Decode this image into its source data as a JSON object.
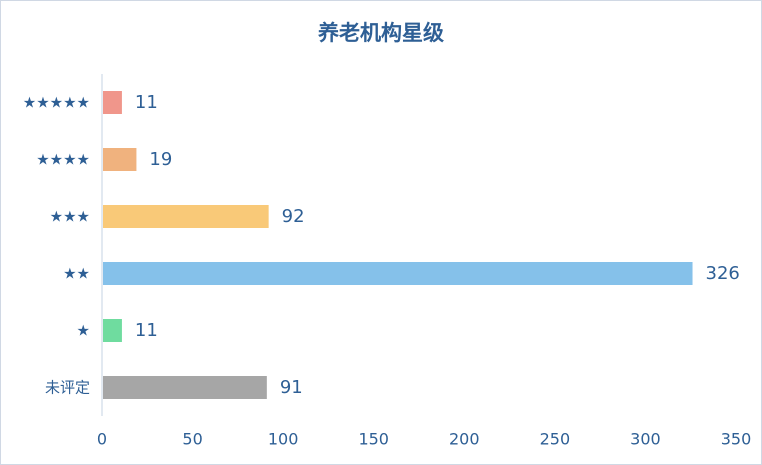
{
  "chart_data": {
    "type": "bar",
    "orientation": "horizontal",
    "title": "养老机构星级",
    "categories": [
      "★★★★★",
      "★★★★",
      "★★★",
      "★★",
      "★",
      "未评定"
    ],
    "values": [
      11,
      19,
      92,
      326,
      11,
      91
    ],
    "colors": [
      "#f0968b",
      "#f0b27e",
      "#f9c978",
      "#85c1ea",
      "#6fdc9f",
      "#a6a6a6"
    ],
    "xlim": [
      0,
      350
    ],
    "xticks": [
      0,
      50,
      100,
      150,
      200,
      250,
      300,
      350
    ],
    "grid": false,
    "legend": "none",
    "data_labels": true
  },
  "colors": {
    "text": "#2e5f95",
    "axis": "#c5d3e3"
  }
}
